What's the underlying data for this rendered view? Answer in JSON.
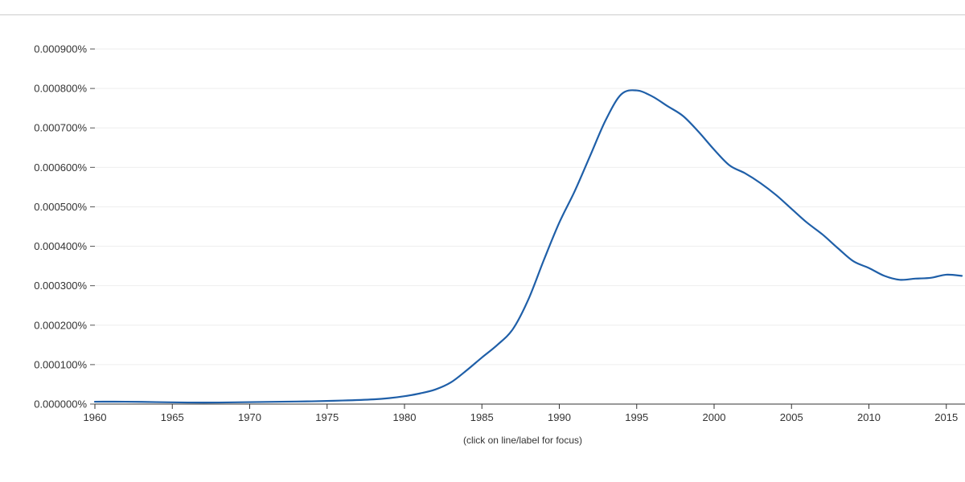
{
  "chart_data": {
    "type": "line",
    "title": "",
    "xlabel": "",
    "ylabel": "",
    "xlim": [
      1960,
      2016
    ],
    "ylim": [
      0,
      0.0009
    ],
    "grid": true,
    "legend": "none",
    "y_ticks": [
      "0.000000%",
      "0.000100%",
      "0.000200%",
      "0.000300%",
      "0.000400%",
      "0.000500%",
      "0.000600%",
      "0.000700%",
      "0.000800%",
      "0.000900%"
    ],
    "y_tick_values": [
      0,
      0.0001,
      0.0002,
      0.0003,
      0.0004,
      0.0005,
      0.0006,
      0.0007,
      0.0008,
      0.0009
    ],
    "x_ticks": [
      "1960",
      "1965",
      "1970",
      "1975",
      "1980",
      "1985",
      "1990",
      "1995",
      "2000",
      "2005",
      "2010",
      "2015"
    ],
    "x_tick_values": [
      1960,
      1965,
      1970,
      1975,
      1980,
      1985,
      1990,
      1995,
      2000,
      2005,
      2010,
      2015
    ],
    "series": [
      {
        "color": "#1f5fa8",
        "x": [
          1960,
          1962,
          1964,
          1966,
          1968,
          1970,
          1972,
          1974,
          1976,
          1978,
          1979,
          1980,
          1981,
          1982,
          1983,
          1984,
          1985,
          1986,
          1987,
          1988,
          1989,
          1990,
          1991,
          1992,
          1993,
          1994,
          1995,
          1996,
          1997,
          1998,
          1999,
          2000,
          2001,
          2002,
          2003,
          2004,
          2005,
          2006,
          2007,
          2008,
          2009,
          2010,
          2011,
          2012,
          2013,
          2014,
          2015,
          2016
        ],
        "values": [
          6e-06,
          6e-06,
          5e-06,
          4e-06,
          4e-06,
          5e-06,
          6e-06,
          7e-06,
          9e-06,
          1.2e-05,
          1.5e-05,
          2e-05,
          2.7e-05,
          3.7e-05,
          5.5e-05,
          8.5e-05,
          0.000118,
          0.00015,
          0.00019,
          0.000265,
          0.000365,
          0.00046,
          0.00054,
          0.00063,
          0.00072,
          0.000785,
          0.000795,
          0.00078,
          0.000755,
          0.00073,
          0.00069,
          0.000645,
          0.000605,
          0.000585,
          0.00056,
          0.00053,
          0.000495,
          0.00046,
          0.00043,
          0.000395,
          0.000362,
          0.000345,
          0.000325,
          0.000315,
          0.000318,
          0.00032,
          0.000328,
          0.000325
        ]
      }
    ]
  },
  "footer": {
    "hint": "(click on line/label for focus)"
  }
}
